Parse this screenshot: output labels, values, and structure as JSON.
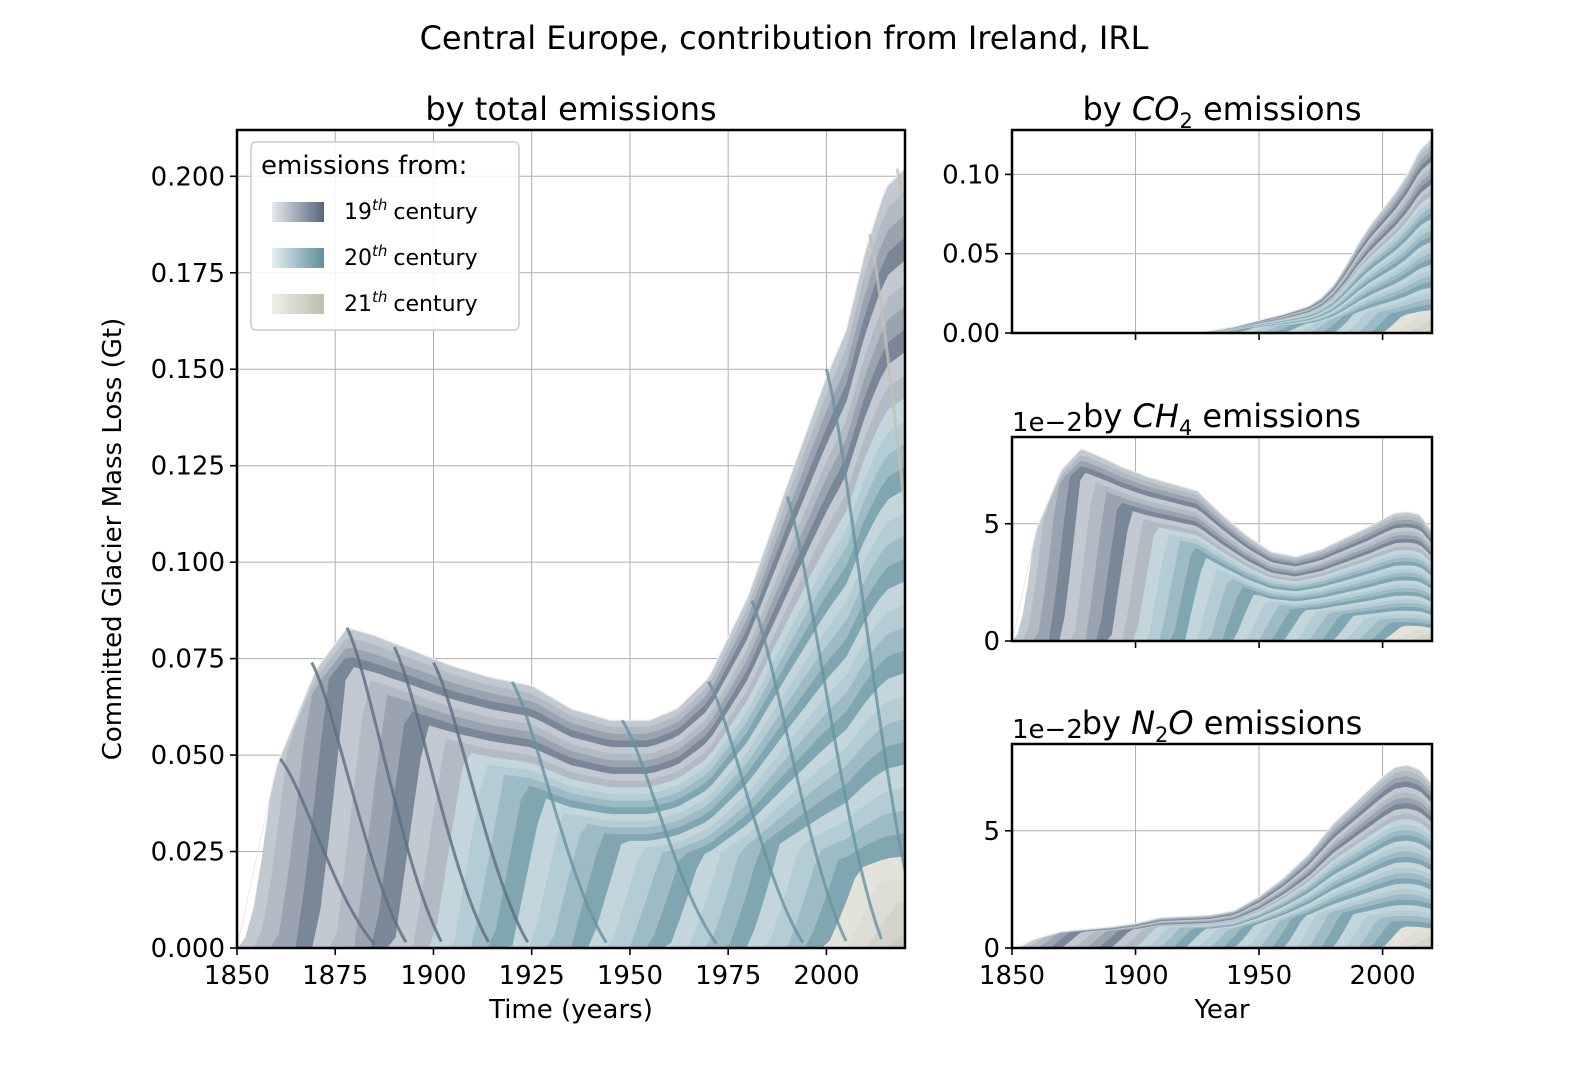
{
  "suptitle": "Central Europe, contribution from Ireland, IRL",
  "legend": {
    "title": "emissions from:",
    "items": [
      {
        "label_base": "19",
        "label_sup": "th",
        "label_tail": "century",
        "colors": [
          "#e6e9ed",
          "#56677a"
        ]
      },
      {
        "label_base": "20",
        "label_sup": "th",
        "label_tail": "century",
        "colors": [
          "#e4eef1",
          "#5f8f9c"
        ]
      },
      {
        "label_base": "21",
        "label_sup": "th",
        "label_tail": "century",
        "colors": [
          "#efefea",
          "#bdbdb0"
        ]
      }
    ]
  },
  "colors": {
    "c19_light": "#e6e9ed",
    "c19_dark": "#56677a",
    "c20_light": "#e4eef1",
    "c20_dark": "#5f8f9c",
    "c21_light": "#efefea",
    "c21_dark": "#bdbdb0"
  },
  "chart_data": [
    {
      "id": "total",
      "type": "area",
      "title": "by total emissions",
      "xlabel": "Time (years)",
      "ylabel": "Committed Glacier Mass Loss (Gt)",
      "xlim": [
        1850,
        2020
      ],
      "ylim": [
        0,
        0.212
      ],
      "xticks": [
        1850,
        1875,
        1900,
        1925,
        1950,
        1975,
        2000
      ],
      "xticklabels": [
        "1850",
        "1875",
        "1900",
        "1925",
        "1950",
        "1975",
        "2000"
      ],
      "yticks": [
        0,
        0.025,
        0.05,
        0.075,
        0.1,
        0.125,
        0.15,
        0.175,
        0.2
      ],
      "yticklabels": [
        "0.000",
        "0.025",
        "0.050",
        "0.075",
        "0.100",
        "0.125",
        "0.150",
        "0.175",
        "0.200"
      ],
      "grid": true,
      "legend_position": "upper-left",
      "envelope": {
        "x": [
          1850,
          1860,
          1870,
          1878,
          1885,
          1895,
          1905,
          1915,
          1925,
          1935,
          1945,
          1955,
          1962,
          1970,
          1980,
          1990,
          2000,
          2005,
          2010,
          2015,
          2020
        ],
        "y": [
          0,
          0.047,
          0.072,
          0.083,
          0.081,
          0.077,
          0.073,
          0.07,
          0.068,
          0.062,
          0.059,
          0.059,
          0.062,
          0.07,
          0.091,
          0.12,
          0.148,
          0.16,
          0.181,
          0.197,
          0.202
        ]
      },
      "peaks": [
        {
          "x": 1861,
          "y": 0.049
        },
        {
          "x": 1869,
          "y": 0.074
        },
        {
          "x": 1878,
          "y": 0.083
        },
        {
          "x": 1890,
          "y": 0.078
        },
        {
          "x": 1900,
          "y": 0.074
        },
        {
          "x": 1920,
          "y": 0.069
        },
        {
          "x": 1948,
          "y": 0.059
        },
        {
          "x": 1970,
          "y": 0.069
        },
        {
          "x": 1981,
          "y": 0.09
        },
        {
          "x": 1990,
          "y": 0.117
        },
        {
          "x": 2000,
          "y": 0.15
        },
        {
          "x": 2011,
          "y": 0.185
        },
        {
          "x": 2018,
          "y": 0.202
        }
      ]
    },
    {
      "id": "co2",
      "type": "area",
      "title_parts": [
        "by ",
        "CO",
        "2",
        " emissions"
      ],
      "xlim": [
        1850,
        2020
      ],
      "ylim": [
        0,
        0.128
      ],
      "xticks": [
        1900,
        1950,
        2000
      ],
      "yticks": [
        0,
        0.05,
        0.1
      ],
      "yticklabels": [
        "0.00",
        "0.05",
        "0.10"
      ],
      "grid": true,
      "envelope": {
        "x": [
          1850,
          1925,
          1940,
          1950,
          1960,
          1970,
          1975,
          1980,
          1985,
          1990,
          1995,
          2000,
          2005,
          2010,
          2015,
          2020
        ],
        "y": [
          0,
          0,
          0.004,
          0.008,
          0.012,
          0.017,
          0.022,
          0.03,
          0.042,
          0.056,
          0.068,
          0.078,
          0.088,
          0.1,
          0.115,
          0.123
        ]
      }
    },
    {
      "id": "ch4",
      "type": "area",
      "title_parts": [
        "by ",
        "CH",
        "4",
        " emissions"
      ],
      "offset_text": "1e−2",
      "xlim": [
        1850,
        2020
      ],
      "ylim": [
        0,
        8.7
      ],
      "xticks": [
        1900,
        1950,
        2000
      ],
      "yticks": [
        0,
        5
      ],
      "yticklabels": [
        "0",
        "5"
      ],
      "grid": true,
      "envelope": {
        "x": [
          1850,
          1860,
          1870,
          1878,
          1885,
          1895,
          1905,
          1915,
          1925,
          1935,
          1945,
          1955,
          1965,
          1975,
          1985,
          1995,
          2000,
          2005,
          2010,
          2015,
          2020
        ],
        "y": [
          0,
          4.8,
          7.3,
          8.2,
          7.9,
          7.4,
          7.0,
          6.7,
          6.4,
          5.4,
          4.5,
          3.8,
          3.6,
          3.9,
          4.4,
          4.9,
          5.2,
          5.45,
          5.5,
          5.4,
          4.7
        ]
      }
    },
    {
      "id": "n2o",
      "type": "area",
      "title_parts": [
        "by ",
        "N",
        "2",
        "O",
        " emissions"
      ],
      "offset_text": "1e−2",
      "xlabel": "Year",
      "xlim": [
        1850,
        2020
      ],
      "ylim": [
        0,
        8.7
      ],
      "xticks": [
        1850,
        1900,
        1950,
        2000
      ],
      "xticklabels": [
        "1850",
        "1900",
        "1950",
        "2000"
      ],
      "yticks": [
        0,
        5
      ],
      "yticklabels": [
        "0",
        "5"
      ],
      "grid": true,
      "envelope": {
        "x": [
          1850,
          1860,
          1870,
          1880,
          1890,
          1900,
          1910,
          1920,
          1930,
          1940,
          1950,
          1960,
          1970,
          1980,
          1990,
          2000,
          2005,
          2010,
          2015,
          2020
        ],
        "y": [
          0,
          0.4,
          0.7,
          0.8,
          0.9,
          1.05,
          1.3,
          1.35,
          1.4,
          1.6,
          2.2,
          3.0,
          4.0,
          5.3,
          6.3,
          7.3,
          7.7,
          7.8,
          7.6,
          7.0
        ]
      }
    }
  ]
}
